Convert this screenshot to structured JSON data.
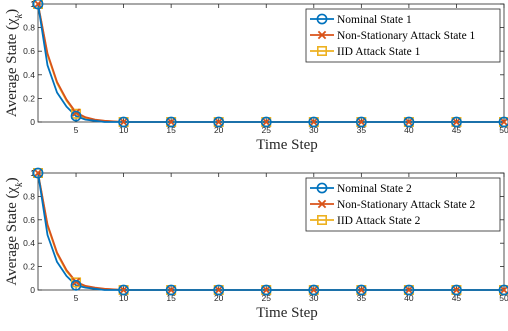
{
  "colors": {
    "nominal": "#0072BD",
    "nonstationary": "#D95319",
    "iid": "#EDB120",
    "axis": "#262626"
  },
  "chart_data": [
    {
      "type": "line",
      "xlabel": "Time Step",
      "ylabel": "Average State (χ_k)",
      "xlim": [
        1,
        50
      ],
      "ylim": [
        0,
        1
      ],
      "xticks": [
        5,
        10,
        15,
        20,
        25,
        30,
        35,
        40,
        45,
        50
      ],
      "yticks": [
        0,
        0.2,
        0.4,
        0.6,
        0.8,
        1
      ],
      "grid": false,
      "legend_position": "top-right",
      "marker_x": [
        1,
        5,
        10,
        15,
        20,
        25,
        30,
        35,
        40,
        45,
        50
      ],
      "series": [
        {
          "name": "Nominal State 1",
          "color_key": "nominal",
          "marker": "circle",
          "x": [
            1,
            2,
            3,
            4,
            5,
            6,
            7,
            8,
            9,
            10,
            15,
            20,
            25,
            30,
            35,
            40,
            45,
            50
          ],
          "y": [
            1.0,
            0.48,
            0.25,
            0.13,
            0.05,
            0.02,
            0.01,
            0.0,
            0.0,
            0.0,
            0.0,
            0.0,
            0.0,
            0.0,
            0.0,
            0.0,
            0.0,
            0.0
          ]
        },
        {
          "name": "Non-Stationary Attack State 1",
          "color_key": "nonstationary",
          "marker": "x",
          "x": [
            1,
            2,
            3,
            4,
            5,
            6,
            7,
            8,
            9,
            10,
            15,
            20,
            25,
            30,
            35,
            40,
            45,
            50
          ],
          "y": [
            1.0,
            0.58,
            0.34,
            0.19,
            0.08,
            0.04,
            0.02,
            0.01,
            0.005,
            0.0,
            0.0,
            0.0,
            0.0,
            0.0,
            0.0,
            0.0,
            0.0,
            0.0
          ]
        },
        {
          "name": "IID Attack State 1",
          "color_key": "iid",
          "marker": "square",
          "x": [
            1,
            2,
            3,
            4,
            5,
            6,
            7,
            8,
            9,
            10,
            15,
            20,
            25,
            30,
            35,
            40,
            45,
            50
          ],
          "y": [
            1.0,
            0.57,
            0.33,
            0.18,
            0.07,
            0.035,
            0.015,
            0.008,
            0.004,
            0.0,
            0.0,
            0.0,
            0.0,
            0.0,
            0.0,
            0.0,
            0.0,
            0.0
          ]
        }
      ]
    },
    {
      "type": "line",
      "xlabel": "Time Step",
      "ylabel": "Average State (χ_k)",
      "xlim": [
        1,
        50
      ],
      "ylim": [
        0,
        1
      ],
      "xticks": [
        5,
        10,
        15,
        20,
        25,
        30,
        35,
        40,
        45,
        50
      ],
      "yticks": [
        0,
        0.2,
        0.4,
        0.6,
        0.8,
        1
      ],
      "grid": false,
      "legend_position": "top-right",
      "marker_x": [
        1,
        5,
        10,
        15,
        20,
        25,
        30,
        35,
        40,
        45,
        50
      ],
      "series": [
        {
          "name": "Nominal State 2",
          "color_key": "nominal",
          "marker": "circle",
          "x": [
            1,
            2,
            3,
            4,
            5,
            6,
            7,
            8,
            9,
            10,
            15,
            20,
            25,
            30,
            35,
            40,
            45,
            50
          ],
          "y": [
            1.0,
            0.47,
            0.24,
            0.12,
            0.04,
            0.02,
            0.01,
            0.0,
            0.0,
            0.0,
            0.0,
            0.0,
            0.0,
            0.0,
            0.0,
            0.0,
            0.0,
            0.0
          ]
        },
        {
          "name": "Non-Stationary Attack State 2",
          "color_key": "nonstationary",
          "marker": "x",
          "x": [
            1,
            2,
            3,
            4,
            5,
            6,
            7,
            8,
            9,
            10,
            15,
            20,
            25,
            30,
            35,
            40,
            45,
            50
          ],
          "y": [
            1.0,
            0.56,
            0.32,
            0.17,
            0.07,
            0.035,
            0.02,
            0.01,
            0.005,
            0.0,
            0.0,
            0.0,
            0.0,
            0.0,
            0.0,
            0.0,
            0.0,
            0.0
          ]
        },
        {
          "name": "IID Attack State 2",
          "color_key": "iid",
          "marker": "square",
          "x": [
            1,
            2,
            3,
            4,
            5,
            6,
            7,
            8,
            9,
            10,
            15,
            20,
            25,
            30,
            35,
            40,
            45,
            50
          ],
          "y": [
            1.0,
            0.55,
            0.31,
            0.16,
            0.065,
            0.03,
            0.015,
            0.008,
            0.004,
            0.0,
            0.0,
            0.0,
            0.0,
            0.0,
            0.0,
            0.0,
            0.0,
            0.0
          ]
        }
      ]
    }
  ]
}
